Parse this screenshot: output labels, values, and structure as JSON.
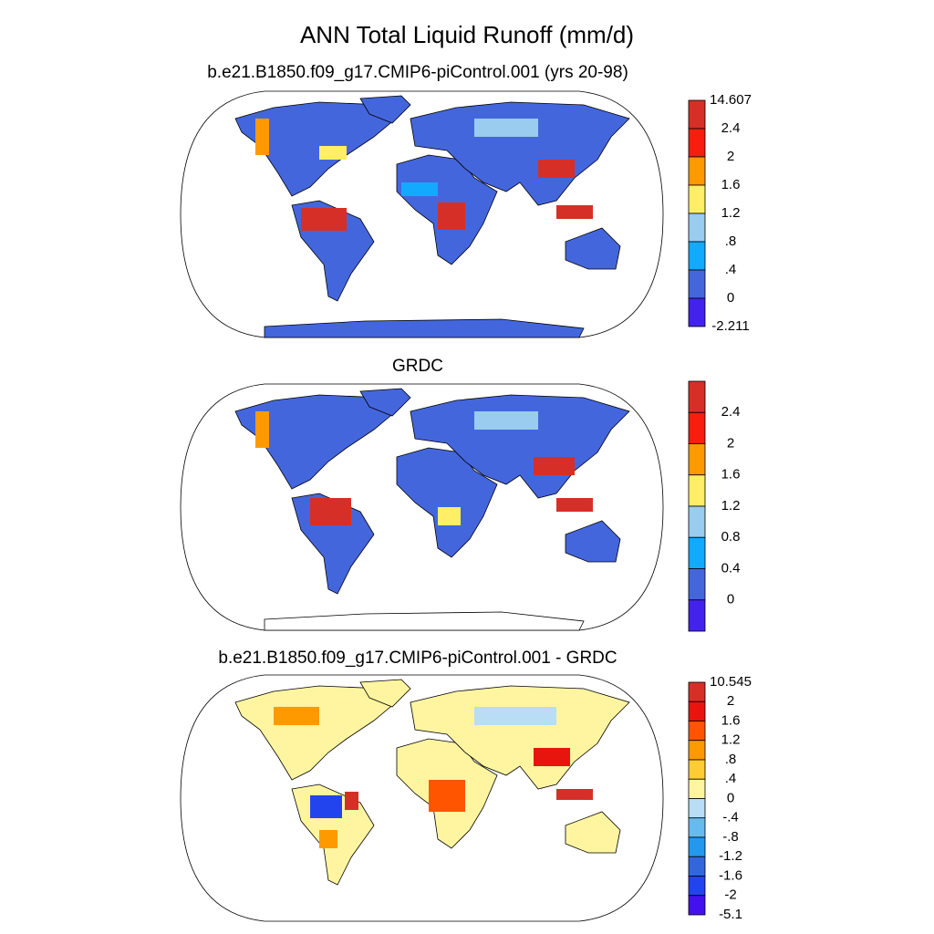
{
  "title": "ANN Total Liquid Runoff (mm/d)",
  "panels": [
    {
      "title": "b.e21.B1850.f09_g17.CMIP6-piControl.001 (yrs 20-98)",
      "colorbar": {
        "labels": [
          "14.607",
          "2.4",
          "2",
          "1.6",
          "1.2",
          ".8",
          ".4",
          "0",
          "-2.211"
        ],
        "colors": [
          "#d62f27",
          "#f51e0f",
          "#ff9900",
          "#ffee66",
          "#99ccee",
          "#11aaff",
          "#4466dd",
          "#4422ee"
        ]
      }
    },
    {
      "title": "GRDC",
      "colorbar": {
        "labels": [
          "2.4",
          "2",
          "1.6",
          "1.2",
          "0.8",
          "0.4",
          "0"
        ],
        "colors": [
          "#d62f27",
          "#f51e0f",
          "#ff9900",
          "#ffee66",
          "#99ccee",
          "#11aaff",
          "#4466dd",
          "#4422ee"
        ]
      }
    },
    {
      "title": "b.e21.B1850.f09_g17.CMIP6-piControl.001 - GRDC",
      "colorbar": {
        "labels": [
          "10.545",
          "2",
          "1.6",
          "1.2",
          ".8",
          ".4",
          "0",
          "-.4",
          "-.8",
          "-1.2",
          "-1.6",
          "-2",
          "-5.1"
        ],
        "colors": [
          "#d62f27",
          "#e8150f",
          "#ff5500",
          "#ff9900",
          "#ffcc33",
          "#fff5a0",
          "#b8ddf5",
          "#66bbee",
          "#2299ee",
          "#3366dd",
          "#2244ee",
          "#4411ee"
        ]
      }
    }
  ]
}
